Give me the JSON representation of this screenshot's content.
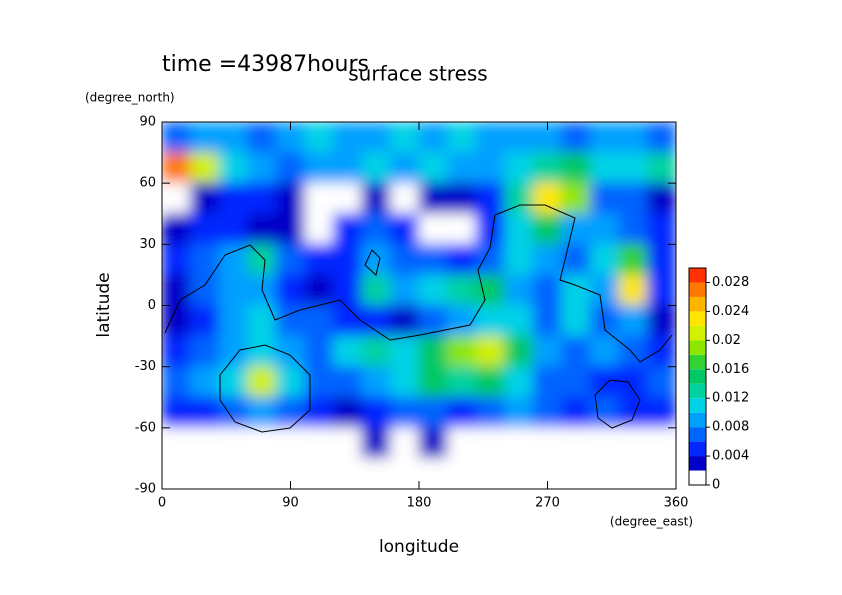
{
  "chart_data": {
    "type": "contour",
    "title": "surface stress",
    "subtitle": "time =43987hours",
    "xlabel": "longitude",
    "ylabel": "latitude",
    "xunits": "(degree_east)",
    "yunits": "(degree_north)",
    "xlim": [
      0,
      360
    ],
    "ylim": [
      -90,
      90
    ],
    "xticks": [
      0,
      90,
      180,
      270,
      360
    ],
    "yticks": [
      -90,
      -60,
      -30,
      0,
      30,
      60,
      90
    ],
    "x": [
      10,
      30,
      50,
      70,
      90,
      110,
      130,
      150,
      170,
      190,
      210,
      230,
      250,
      270,
      290,
      310,
      330,
      350
    ],
    "y": [
      82.5,
      67.5,
      52.5,
      37.5,
      22.5,
      7.5,
      -7.5,
      -22.5,
      -37.5,
      -52.5,
      -67.5,
      -82.5
    ],
    "z": [
      [
        0.006,
        0.008,
        0.008,
        0.006,
        0.008,
        0.01,
        0.008,
        0.008,
        0.01,
        0.008,
        0.01,
        0.008,
        0.008,
        0.008,
        0.006,
        0.008,
        0.008,
        0.006
      ],
      [
        0.026,
        0.02,
        0.01,
        0.008,
        0.006,
        0.008,
        0.008,
        0.01,
        0.008,
        0.01,
        0.008,
        0.008,
        0.01,
        0.012,
        0.014,
        0.01,
        0.01,
        0.012
      ],
      [
        0,
        0.002,
        0.004,
        0.004,
        0.002,
        0,
        0,
        0.002,
        0,
        0.002,
        0.002,
        0.004,
        0.012,
        0.022,
        0.018,
        0.006,
        0.006,
        0.002
      ],
      [
        0.002,
        0.004,
        0.004,
        0.002,
        0.002,
        0,
        0.004,
        0.006,
        0.004,
        0,
        0,
        0.004,
        0.01,
        0.014,
        0.008,
        0.008,
        0.006,
        0.004
      ],
      [
        0.004,
        0.006,
        0.008,
        0.012,
        0.006,
        0.004,
        0.004,
        0.008,
        0.006,
        0.006,
        0.004,
        0.006,
        0.01,
        0.008,
        0.006,
        0.01,
        0.016,
        0.004
      ],
      [
        0.002,
        0.006,
        0.008,
        0.008,
        0.004,
        0.002,
        0.004,
        0.012,
        0.008,
        0.01,
        0.012,
        0.014,
        0.008,
        0.006,
        0.01,
        0.008,
        0.022,
        0.004
      ],
      [
        0.002,
        0.004,
        0.008,
        0.01,
        0.006,
        0.006,
        0.004,
        0.004,
        0.002,
        0.006,
        0.008,
        0.01,
        0.01,
        0.006,
        0.01,
        0.006,
        0.008,
        0.002
      ],
      [
        0.004,
        0.006,
        0.008,
        0.01,
        0.008,
        0.006,
        0.01,
        0.012,
        0.01,
        0.014,
        0.018,
        0.02,
        0.014,
        0.008,
        0.006,
        0.008,
        0.006,
        0.004
      ],
      [
        0.006,
        0.008,
        0.01,
        0.02,
        0.01,
        0.006,
        0.006,
        0.008,
        0.01,
        0.014,
        0.012,
        0.014,
        0.01,
        0.006,
        0.006,
        0.004,
        0.004,
        0.006
      ],
      [
        0.004,
        0.004,
        0.006,
        0.008,
        0.006,
        0.004,
        0.002,
        0.004,
        0.006,
        0.006,
        0.004,
        0.006,
        0.008,
        0.006,
        0.004,
        0.006,
        0.004,
        0.004
      ],
      [
        0,
        0,
        0,
        0,
        0,
        0,
        0,
        0.002,
        0,
        0.002,
        0,
        0,
        0,
        0,
        0,
        0,
        0,
        0
      ],
      [
        0,
        0,
        0,
        0,
        0,
        0,
        0,
        0,
        0,
        0,
        0,
        0,
        0,
        0,
        0,
        0,
        0,
        0
      ]
    ],
    "levels": [
      0,
      0.002,
      0.004,
      0.006,
      0.008,
      0.01,
      0.012,
      0.014,
      0.016,
      0.018,
      0.02,
      0.022,
      0.024,
      0.026,
      0.028,
      0.03
    ],
    "colors": [
      "#ffffff",
      "#0000c8",
      "#0028ff",
      "#0064ff",
      "#00a0ff",
      "#00d2e6",
      "#00d2a0",
      "#00c864",
      "#32d232",
      "#8ce600",
      "#d2f000",
      "#ffe600",
      "#ffb400",
      "#ff7800",
      "#ff3200"
    ],
    "cticks": [
      0,
      0.004,
      0.008,
      0.012,
      0.016,
      0.02,
      0.024,
      0.028
    ]
  }
}
